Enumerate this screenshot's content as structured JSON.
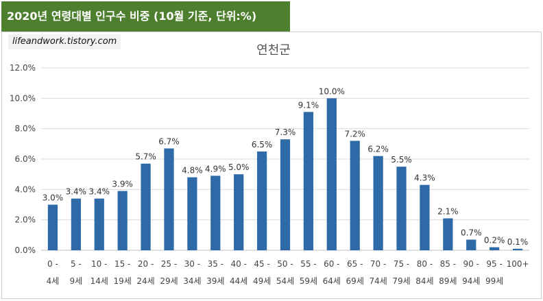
{
  "header": {
    "banner": "2020년 연령대별 인구수 비중 (10월 기준, 단위:%)",
    "watermark": "lifeandwork.tistory.com"
  },
  "chart_data": {
    "type": "bar",
    "title": "연천군",
    "xlabel": "",
    "ylabel": "",
    "ylim": [
      0,
      12
    ],
    "y_ticks": [
      "0.0%",
      "2.0%",
      "4.0%",
      "6.0%",
      "8.0%",
      "10.0%",
      "12.0%"
    ],
    "grid": true,
    "bar_color": "#2e6aa8",
    "categories": [
      [
        "0 -",
        "4세"
      ],
      [
        "5 -",
        "9세"
      ],
      [
        "10 -",
        "14세"
      ],
      [
        "15 -",
        "19세"
      ],
      [
        "20 -",
        "24세"
      ],
      [
        "25 -",
        "29세"
      ],
      [
        "30 -",
        "34세"
      ],
      [
        "35 -",
        "39세"
      ],
      [
        "40 -",
        "44세"
      ],
      [
        "45 -",
        "49세"
      ],
      [
        "50 -",
        "54세"
      ],
      [
        "55 -",
        "59세"
      ],
      [
        "60 -",
        "64세"
      ],
      [
        "65 -",
        "69세"
      ],
      [
        "70 -",
        "74세"
      ],
      [
        "75 -",
        "79세"
      ],
      [
        "80 -",
        "84세"
      ],
      [
        "85 -",
        "89세"
      ],
      [
        "90 -",
        "94세"
      ],
      [
        "95 -",
        "99세"
      ],
      [
        "100+",
        ""
      ]
    ],
    "values": [
      3.0,
      3.4,
      3.4,
      3.9,
      5.7,
      6.7,
      4.8,
      4.9,
      5.0,
      6.5,
      7.3,
      9.1,
      10.0,
      7.2,
      6.2,
      5.5,
      4.3,
      2.1,
      0.7,
      0.2,
      0.1
    ],
    "labels": [
      "3.0%",
      "3.4%",
      "3.4%",
      "3.9%",
      "5.7%",
      "6.7%",
      "4.8%",
      "4.9%",
      "5.0%",
      "6.5%",
      "7.3%",
      "9.1%",
      "10.0%",
      "7.2%",
      "6.2%",
      "5.5%",
      "4.3%",
      "2.1%",
      "0.7%",
      "0.2%",
      "0.1%"
    ]
  }
}
